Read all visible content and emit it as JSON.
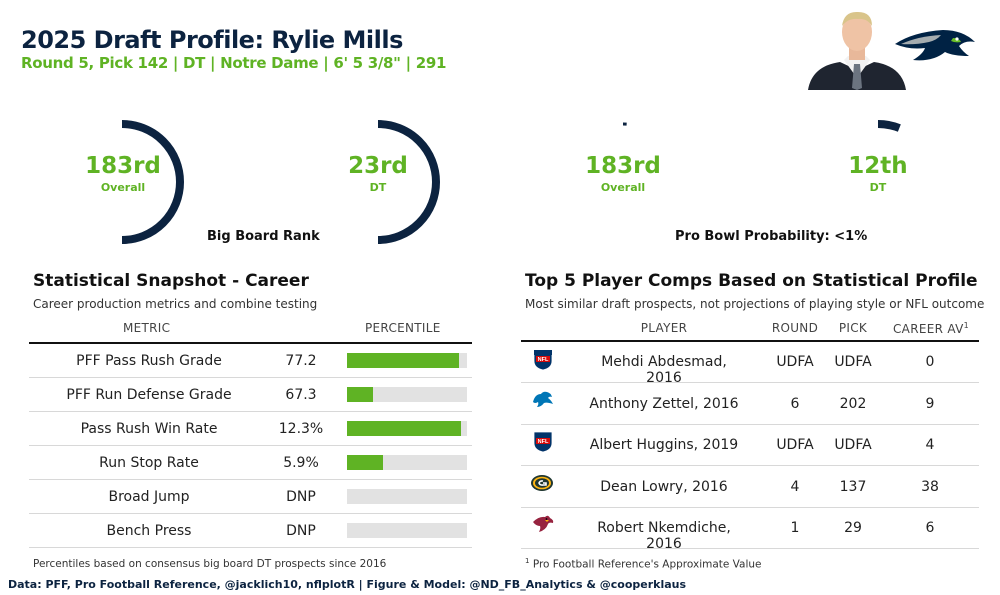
{
  "header": {
    "title": "2025 Draft Profile: Rylie Mills",
    "subtitle": "Round 5, Pick 142 | DT | Notre Dame | 6' 5 3/8\" | 291"
  },
  "colors": {
    "navy": "#0c2340",
    "green": "#5fb324",
    "bar_bg": "#e2e2e2"
  },
  "gauges": {
    "big_board": {
      "caption": "Big Board Rank",
      "overall": {
        "value": "183rd",
        "label": "Overall",
        "fill": 0.5
      },
      "position": {
        "value": "23rd",
        "label": "DT",
        "fill": 0.5
      }
    },
    "pro_bowl": {
      "caption": "Pro Bowl Probability: <1%",
      "overall": {
        "value": "183rd",
        "label": "Overall",
        "fill": 0.01
      },
      "position": {
        "value": "12th",
        "label": "DT",
        "fill": 0.06
      }
    }
  },
  "snapshot": {
    "title": "Statistical Snapshot - Career",
    "subtitle": "Career production metrics and combine testing",
    "col_metric": "METRIC",
    "col_percentile": "PERCENTILE",
    "rows": [
      {
        "metric": "PFF Pass Rush Grade",
        "value": "77.2",
        "pct": 0.93
      },
      {
        "metric": "PFF Run Defense Grade",
        "value": "67.3",
        "pct": 0.22
      },
      {
        "metric": "Pass Rush Win Rate",
        "value": "12.3%",
        "pct": 0.95
      },
      {
        "metric": "Run Stop Rate",
        "value": "5.9%",
        "pct": 0.3
      },
      {
        "metric": "Broad Jump",
        "value": "DNP",
        "pct": 0
      },
      {
        "metric": "Bench Press",
        "value": "DNP",
        "pct": 0
      }
    ],
    "footnote": "Percentiles based on consensus big board DT prospects since 2016"
  },
  "comps": {
    "title": "Top 5 Player Comps Based on Statistical Profile",
    "subtitle": "Most similar draft prospects, not projections of playing style or NFL outcome",
    "col_player": "PLAYER",
    "col_round": "ROUND",
    "col_pick": "PICK",
    "col_av": "CAREER AV",
    "col_av_sup": "1",
    "rows": [
      {
        "logo": "nfl-shield-icon",
        "player": "Mehdi Abdesmad, 2016",
        "round": "UDFA",
        "pick": "UDFA",
        "av": "0"
      },
      {
        "logo": "lions-icon",
        "player": "Anthony Zettel, 2016",
        "round": "6",
        "pick": "202",
        "av": "9"
      },
      {
        "logo": "nfl-shield-icon",
        "player": "Albert Huggins, 2019",
        "round": "UDFA",
        "pick": "UDFA",
        "av": "4"
      },
      {
        "logo": "packers-icon",
        "player": "Dean Lowry, 2016",
        "round": "4",
        "pick": "137",
        "av": "38"
      },
      {
        "logo": "cardinals-icon",
        "player": "Robert Nkemdiche, 2016",
        "round": "1",
        "pick": "29",
        "av": "6"
      }
    ],
    "footnote_sup": "1",
    "footnote": "Pro Football Reference's Approximate Value"
  },
  "credits": "Data: PFF, Pro Football Reference, @jacklich10, nflplotR | Figure & Model: @ND_FB_Analytics & @cooperklaus"
}
